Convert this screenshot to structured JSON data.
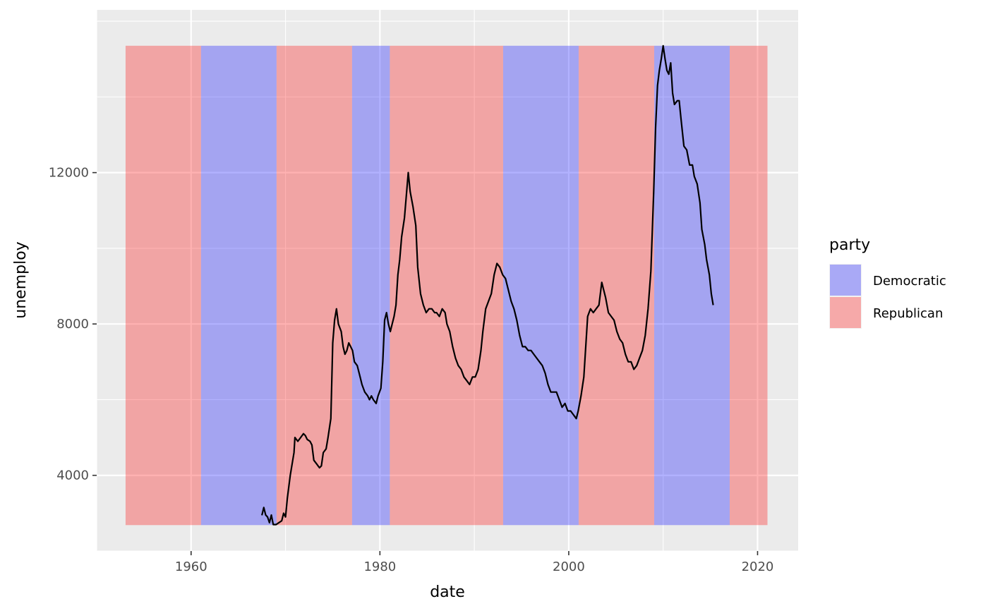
{
  "chart_data": {
    "type": "line",
    "xlabel": "date",
    "ylabel": "unemploy",
    "xlim": [
      1950.0,
      2024.3
    ],
    "ylim": [
      2000,
      16300
    ],
    "x_ticks": [
      1960,
      1980,
      2000,
      2020
    ],
    "x_minor_ticks": [
      1950,
      1970,
      1990,
      2010
    ],
    "y_ticks": [
      4000,
      8000,
      12000
    ],
    "y_minor_ticks": [
      2000,
      6000,
      10000,
      14000,
      16000
    ],
    "grid": true,
    "panel_background": "#ebebeb",
    "legend": {
      "title": "party",
      "position": "right",
      "entries": [
        {
          "label": "Democratic",
          "color": "#0000ff"
        },
        {
          "label": "Republican",
          "color": "#ff0000"
        }
      ]
    },
    "bands": {
      "alpha": 0.3,
      "ymin": 2685,
      "ymax": 15352,
      "periods": [
        {
          "party": "Republican",
          "start": 1953.06,
          "end": 1961.05
        },
        {
          "party": "Democratic",
          "start": 1961.05,
          "end": 1969.05
        },
        {
          "party": "Republican",
          "start": 1969.05,
          "end": 1977.05
        },
        {
          "party": "Democratic",
          "start": 1977.05,
          "end": 1981.05
        },
        {
          "party": "Republican",
          "start": 1981.05,
          "end": 1993.05
        },
        {
          "party": "Democratic",
          "start": 1993.05,
          "end": 2001.05
        },
        {
          "party": "Republican",
          "start": 2001.05,
          "end": 2009.05
        },
        {
          "party": "Democratic",
          "start": 2009.05,
          "end": 2017.05
        },
        {
          "party": "Republican",
          "start": 2017.05,
          "end": 2021.05
        }
      ]
    },
    "series": [
      {
        "color": "#000000",
        "points": [
          [
            1967.5,
            2944
          ],
          [
            1967.7,
            3150
          ],
          [
            1967.9,
            2950
          ],
          [
            1968.1,
            2900
          ],
          [
            1968.3,
            2750
          ],
          [
            1968.5,
            2950
          ],
          [
            1968.7,
            2700
          ],
          [
            1969.0,
            2700
          ],
          [
            1969.3,
            2750
          ],
          [
            1969.6,
            2800
          ],
          [
            1969.8,
            3000
          ],
          [
            1970.0,
            2900
          ],
          [
            1970.2,
            3400
          ],
          [
            1970.5,
            4000
          ],
          [
            1970.9,
            4600
          ],
          [
            1971.0,
            5000
          ],
          [
            1971.3,
            4900
          ],
          [
            1971.6,
            5000
          ],
          [
            1971.9,
            5100
          ],
          [
            1972.1,
            5050
          ],
          [
            1972.3,
            4950
          ],
          [
            1972.6,
            4900
          ],
          [
            1972.8,
            4800
          ],
          [
            1973.0,
            4400
          ],
          [
            1973.3,
            4300
          ],
          [
            1973.6,
            4200
          ],
          [
            1973.8,
            4250
          ],
          [
            1974.0,
            4600
          ],
          [
            1974.3,
            4700
          ],
          [
            1974.5,
            5000
          ],
          [
            1974.8,
            5500
          ],
          [
            1975.0,
            7500
          ],
          [
            1975.2,
            8100
          ],
          [
            1975.4,
            8400
          ],
          [
            1975.6,
            8000
          ],
          [
            1975.9,
            7800
          ],
          [
            1976.1,
            7400
          ],
          [
            1976.3,
            7200
          ],
          [
            1976.5,
            7300
          ],
          [
            1976.7,
            7500
          ],
          [
            1976.9,
            7400
          ],
          [
            1977.1,
            7300
          ],
          [
            1977.3,
            7000
          ],
          [
            1977.6,
            6900
          ],
          [
            1977.9,
            6600
          ],
          [
            1978.1,
            6400
          ],
          [
            1978.4,
            6200
          ],
          [
            1978.7,
            6100
          ],
          [
            1978.9,
            6000
          ],
          [
            1979.1,
            6100
          ],
          [
            1979.3,
            6000
          ],
          [
            1979.6,
            5900
          ],
          [
            1979.8,
            6100
          ],
          [
            1980.1,
            6300
          ],
          [
            1980.3,
            7000
          ],
          [
            1980.5,
            8100
          ],
          [
            1980.7,
            8300
          ],
          [
            1980.9,
            8000
          ],
          [
            1981.1,
            7800
          ],
          [
            1981.3,
            8000
          ],
          [
            1981.5,
            8200
          ],
          [
            1981.7,
            8500
          ],
          [
            1981.9,
            9300
          ],
          [
            1982.1,
            9700
          ],
          [
            1982.3,
            10300
          ],
          [
            1982.6,
            10800
          ],
          [
            1982.8,
            11400
          ],
          [
            1983.0,
            12000
          ],
          [
            1983.2,
            11500
          ],
          [
            1983.5,
            11100
          ],
          [
            1983.8,
            10600
          ],
          [
            1984.0,
            9500
          ],
          [
            1984.3,
            8800
          ],
          [
            1984.6,
            8500
          ],
          [
            1984.9,
            8300
          ],
          [
            1985.2,
            8400
          ],
          [
            1985.5,
            8400
          ],
          [
            1985.8,
            8300
          ],
          [
            1986.0,
            8300
          ],
          [
            1986.3,
            8200
          ],
          [
            1986.6,
            8400
          ],
          [
            1986.9,
            8300
          ],
          [
            1987.1,
            8000
          ],
          [
            1987.4,
            7800
          ],
          [
            1987.7,
            7400
          ],
          [
            1988.0,
            7100
          ],
          [
            1988.3,
            6900
          ],
          [
            1988.6,
            6800
          ],
          [
            1988.9,
            6600
          ],
          [
            1989.2,
            6500
          ],
          [
            1989.5,
            6400
          ],
          [
            1989.8,
            6600
          ],
          [
            1990.1,
            6600
          ],
          [
            1990.4,
            6800
          ],
          [
            1990.7,
            7300
          ],
          [
            1990.9,
            7800
          ],
          [
            1991.2,
            8400
          ],
          [
            1991.5,
            8600
          ],
          [
            1991.8,
            8800
          ],
          [
            1992.1,
            9300
          ],
          [
            1992.4,
            9600
          ],
          [
            1992.7,
            9500
          ],
          [
            1993.0,
            9300
          ],
          [
            1993.3,
            9200
          ],
          [
            1993.6,
            8900
          ],
          [
            1993.9,
            8600
          ],
          [
            1994.2,
            8400
          ],
          [
            1994.5,
            8100
          ],
          [
            1994.8,
            7700
          ],
          [
            1995.1,
            7400
          ],
          [
            1995.4,
            7400
          ],
          [
            1995.7,
            7300
          ],
          [
            1996.0,
            7300
          ],
          [
            1996.3,
            7200
          ],
          [
            1996.6,
            7100
          ],
          [
            1996.9,
            7000
          ],
          [
            1997.2,
            6900
          ],
          [
            1997.5,
            6700
          ],
          [
            1997.8,
            6400
          ],
          [
            1998.1,
            6200
          ],
          [
            1998.4,
            6200
          ],
          [
            1998.7,
            6200
          ],
          [
            1999.0,
            6000
          ],
          [
            1999.3,
            5800
          ],
          [
            1999.6,
            5900
          ],
          [
            1999.9,
            5700
          ],
          [
            2000.2,
            5700
          ],
          [
            2000.5,
            5600
          ],
          [
            2000.8,
            5500
          ],
          [
            2001.0,
            5700
          ],
          [
            2001.3,
            6100
          ],
          [
            2001.6,
            6600
          ],
          [
            2001.8,
            7400
          ],
          [
            2002.0,
            8200
          ],
          [
            2002.3,
            8400
          ],
          [
            2002.6,
            8300
          ],
          [
            2002.9,
            8400
          ],
          [
            2003.2,
            8500
          ],
          [
            2003.5,
            9100
          ],
          [
            2003.7,
            8900
          ],
          [
            2003.9,
            8700
          ],
          [
            2004.2,
            8300
          ],
          [
            2004.5,
            8200
          ],
          [
            2004.8,
            8100
          ],
          [
            2005.1,
            7800
          ],
          [
            2005.4,
            7600
          ],
          [
            2005.7,
            7500
          ],
          [
            2006.0,
            7200
          ],
          [
            2006.3,
            7000
          ],
          [
            2006.6,
            7000
          ],
          [
            2006.9,
            6800
          ],
          [
            2007.2,
            6900
          ],
          [
            2007.5,
            7100
          ],
          [
            2007.8,
            7300
          ],
          [
            2008.1,
            7700
          ],
          [
            2008.4,
            8400
          ],
          [
            2008.7,
            9400
          ],
          [
            2009.0,
            11500
          ],
          [
            2009.2,
            13200
          ],
          [
            2009.4,
            14300
          ],
          [
            2009.6,
            14700
          ],
          [
            2009.8,
            15000
          ],
          [
            2010.0,
            15352
          ],
          [
            2010.2,
            15000
          ],
          [
            2010.4,
            14700
          ],
          [
            2010.6,
            14600
          ],
          [
            2010.8,
            14900
          ],
          [
            2011.0,
            14100
          ],
          [
            2011.2,
            13800
          ],
          [
            2011.5,
            13900
          ],
          [
            2011.7,
            13900
          ],
          [
            2011.9,
            13400
          ],
          [
            2012.2,
            12700
          ],
          [
            2012.5,
            12600
          ],
          [
            2012.8,
            12200
          ],
          [
            2013.1,
            12200
          ],
          [
            2013.3,
            11900
          ],
          [
            2013.6,
            11700
          ],
          [
            2013.9,
            11200
          ],
          [
            2014.1,
            10500
          ],
          [
            2014.4,
            10100
          ],
          [
            2014.6,
            9700
          ],
          [
            2014.9,
            9300
          ],
          [
            2015.1,
            8800
          ],
          [
            2015.3,
            8500
          ]
        ]
      }
    ]
  }
}
